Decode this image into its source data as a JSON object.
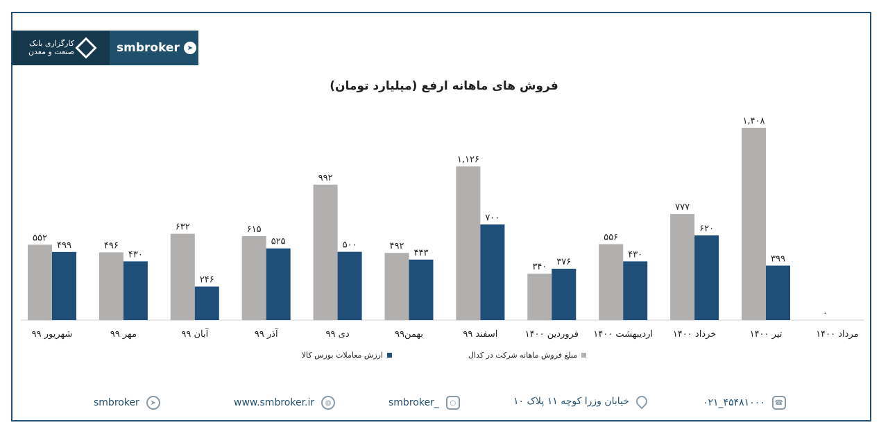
{
  "header": {
    "logo_text_line1": "کارگزاری بانک",
    "logo_text_line2": "صنعت و معدن",
    "brand": "smbroker",
    "brand_icon": "telegram-icon"
  },
  "chart_data": {
    "type": "bar",
    "title": "فروش های ماهانه ارفع (میلیارد تومان)",
    "categories": [
      "شهریور ۹۹",
      "مهر ۹۹",
      "آبان ۹۹",
      "آذر ۹۹",
      "دی ۹۹",
      "بهمن۹۹",
      "اسفند ۹۹",
      "فروردین ۱۴۰۰",
      "اردیبهشت ۱۴۰۰",
      "خرداد ۱۴۰۰",
      "تیر ۱۴۰۰",
      "مرداد ۱۴۰۰"
    ],
    "series": [
      {
        "name": "مبلغ فروش ماهانه شرکت در کدال",
        "color": "#b2afaf",
        "values": [
          552,
          496,
          632,
          615,
          992,
          492,
          1126,
          340,
          556,
          777,
          1408,
          0
        ],
        "labels": [
          "۵۵۲",
          "۴۹۶",
          "۶۳۲",
          "۶۱۵",
          "۹۹۲",
          "۴۹۲",
          "۱,۱۲۶",
          "۳۴۰",
          "۵۵۶",
          "۷۷۷",
          "۱,۴۰۸",
          "۰"
        ]
      },
      {
        "name": "ارزش معاملات بورس کالا",
        "color": "#1f4e79",
        "values": [
          499,
          430,
          246,
          525,
          500,
          443,
          700,
          376,
          430,
          620,
          399,
          null
        ],
        "labels": [
          "۴۹۹",
          "۴۳۰",
          "۲۴۶",
          "۵۲۵",
          "۵۰۰",
          "۴۴۳",
          "۷۰۰",
          "۳۷۶",
          "۴۳۰",
          "۶۲۰",
          "۳۹۹",
          ""
        ]
      }
    ],
    "ylim": [
      0,
      1408
    ],
    "grid": false,
    "legend": "bottom"
  },
  "footer": {
    "telegram": "smbroker",
    "telegram_icon": "paper-plane-icon",
    "website": "www.smbroker.ir",
    "website_icon": "globe-icon",
    "instagram": "smbroker_",
    "instagram_icon": "instagram-icon",
    "address": "خیابان وزرا کوچه ۱۱ پلاک ۱۰",
    "address_icon": "location-pin-icon",
    "phone": "۰۲۱_۴۵۴۸۱۰۰۰",
    "phone_icon": "phone-icon"
  }
}
